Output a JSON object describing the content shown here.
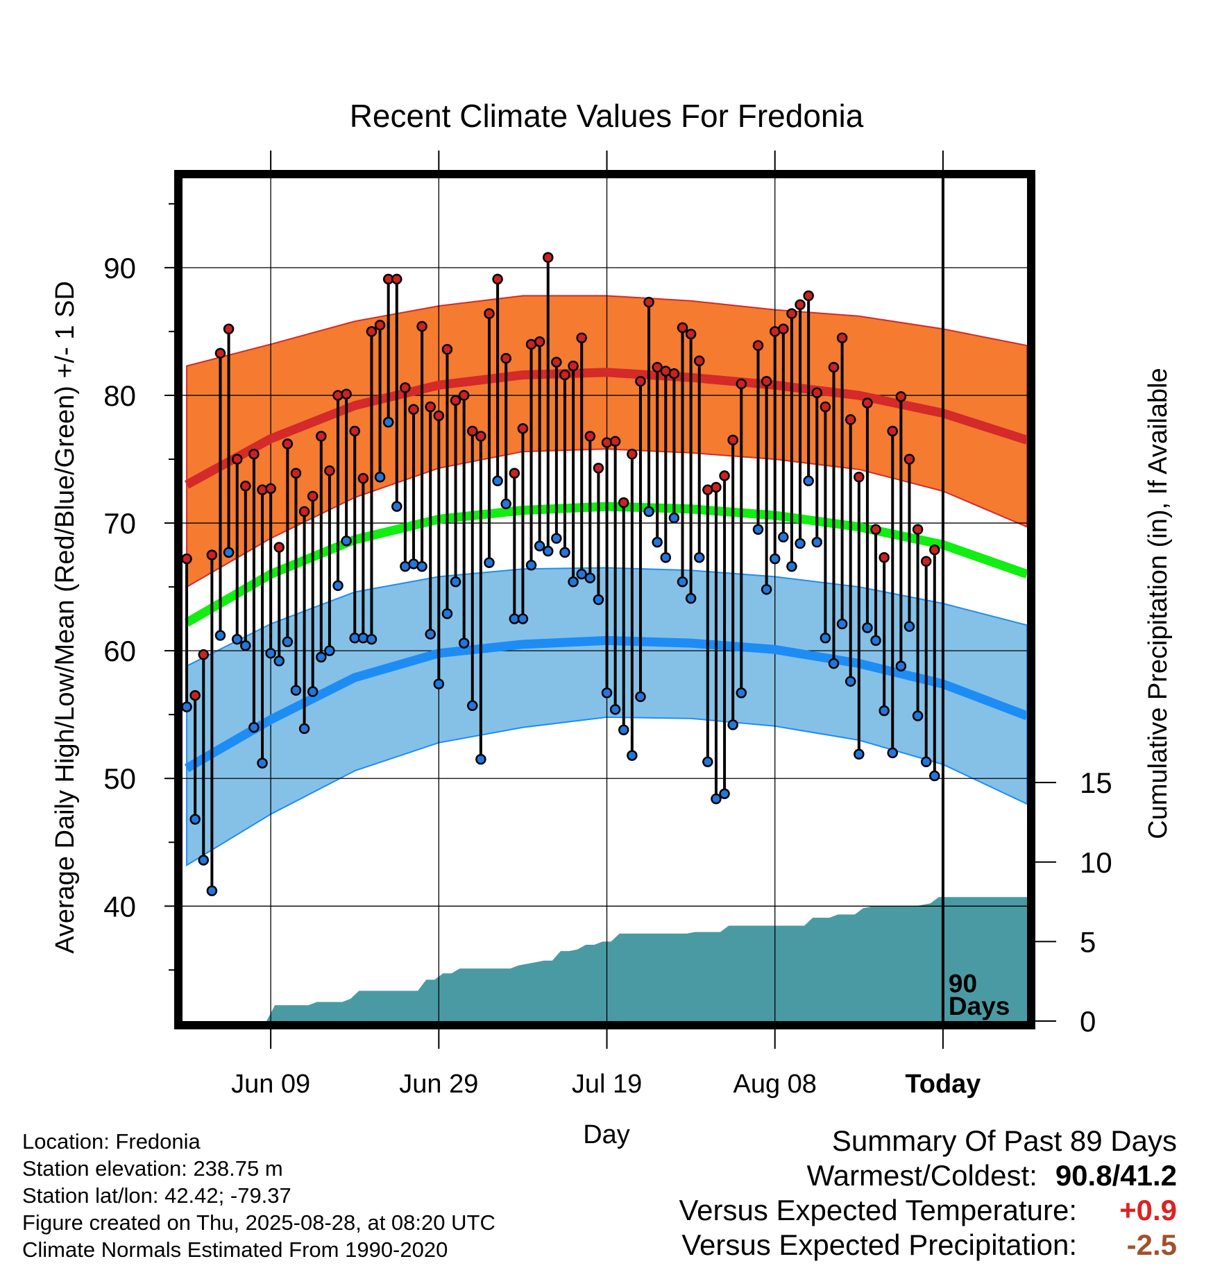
{
  "chart_data": {
    "type": "line",
    "title": "Recent Climate Values For Fredonia",
    "xlabel": "Day",
    "ylabel_left": "Average Daily High/Low/Mean (Red/Blue/Green) +/- 1 SD",
    "ylabel_right": "Cumulative Precipitation (in), If Available",
    "ylim": [
      31,
      97
    ],
    "ylim_right": [
      0,
      53
    ],
    "yticks": [
      40,
      50,
      60,
      70,
      80,
      90
    ],
    "yticks_right": [
      0,
      5,
      10,
      15
    ],
    "x_tick_labels": [
      "Jun 09",
      "Jun 29",
      "Jul 19",
      "Aug 08",
      "Today"
    ],
    "x_tick_days": [
      10,
      30,
      50,
      70,
      90
    ],
    "x_range": [
      -0.5,
      100
    ],
    "today_marker_label": [
      "90",
      "Days"
    ],
    "grid": true,
    "normals": {
      "days": [
        0,
        10,
        20,
        30,
        40,
        50,
        60,
        70,
        80,
        90,
        100
      ],
      "high_mean": [
        73.0,
        76.6,
        79.2,
        80.8,
        81.6,
        81.8,
        81.4,
        80.8,
        80.0,
        78.6,
        76.5
      ],
      "high_upper": [
        82.3,
        84.0,
        85.8,
        87.0,
        87.8,
        87.8,
        87.4,
        86.7,
        86.2,
        85.2,
        83.9
      ],
      "high_lower": [
        65.0,
        68.8,
        72.0,
        74.3,
        75.6,
        75.8,
        75.5,
        75.0,
        74.2,
        72.5,
        69.7
      ],
      "mean": [
        62.2,
        66.0,
        68.7,
        70.3,
        71.0,
        71.3,
        71.1,
        70.6,
        69.7,
        68.3,
        66.0
      ],
      "low_mean": [
        50.8,
        54.6,
        57.9,
        59.8,
        60.5,
        60.8,
        60.6,
        60.1,
        59.0,
        57.4,
        54.9
      ],
      "low_upper": [
        58.8,
        62.1,
        64.6,
        65.8,
        66.4,
        66.5,
        66.3,
        65.8,
        65.0,
        63.7,
        62.0
      ],
      "low_lower": [
        43.2,
        47.2,
        50.6,
        52.8,
        54.0,
        54.8,
        54.7,
        54.1,
        53.0,
        51.1,
        48.0
      ]
    },
    "series": [
      {
        "name": "High",
        "color": "#cc2222",
        "values": [
          67.2,
          56.5,
          59.7,
          67.5,
          83.3,
          85.2,
          75.0,
          72.9,
          75.4,
          72.6,
          72.7,
          68.1,
          76.2,
          73.9,
          70.9,
          72.1,
          76.8,
          74.1,
          80.0,
          80.1,
          77.2,
          73.5,
          85.0,
          85.5,
          89.1,
          89.1,
          80.6,
          78.9,
          85.4,
          79.1,
          78.4,
          83.6,
          79.6,
          80.0,
          77.2,
          76.8,
          86.4,
          89.1,
          82.9,
          73.9,
          77.4,
          84.0,
          84.2,
          90.8,
          82.6,
          81.6,
          82.3,
          84.5,
          76.8,
          74.3,
          76.3,
          76.4,
          71.6,
          75.4,
          81.1,
          87.3,
          82.2,
          81.9,
          81.7,
          85.3,
          84.8,
          82.7,
          72.6,
          72.8,
          73.7,
          76.5,
          80.9,
          null,
          83.9,
          81.1,
          85.0,
          85.2,
          86.4,
          87.1,
          87.8,
          80.2,
          79.1,
          82.2,
          84.5,
          78.1,
          73.6,
          79.4,
          69.5,
          67.3,
          77.2,
          79.9,
          75.0,
          69.5,
          67.0,
          67.9
        ]
      },
      {
        "name": "Low",
        "color": "#2277dd",
        "values": [
          55.6,
          46.8,
          43.6,
          41.2,
          61.2,
          67.7,
          60.9,
          60.4,
          54.0,
          51.2,
          59.8,
          59.2,
          60.7,
          56.9,
          53.9,
          56.8,
          59.5,
          60.0,
          65.1,
          68.6,
          61.0,
          61.0,
          60.9,
          73.6,
          77.9,
          71.3,
          66.6,
          66.8,
          66.6,
          61.3,
          57.4,
          62.9,
          65.4,
          60.6,
          55.7,
          51.5,
          66.9,
          73.3,
          71.5,
          62.5,
          62.5,
          66.7,
          68.2,
          67.8,
          68.8,
          67.7,
          65.4,
          66.0,
          65.7,
          64.0,
          56.7,
          55.4,
          53.8,
          51.8,
          56.4,
          70.9,
          68.5,
          67.3,
          70.4,
          65.4,
          64.1,
          67.3,
          51.3,
          48.4,
          48.8,
          54.2,
          56.7,
          null,
          69.5,
          64.8,
          67.2,
          68.9,
          66.6,
          68.4,
          73.3,
          68.5,
          61.0,
          59.0,
          62.1,
          57.6,
          51.9,
          61.8,
          60.8,
          55.3,
          52.0,
          58.8,
          61.9,
          54.9,
          51.3,
          50.2
        ]
      }
    ],
    "precip_cumulative": {
      "days": [
        9.5,
        10.5,
        14.5,
        15.5,
        18.5,
        19.5,
        20.5,
        27.5,
        28.5,
        29.5,
        30.5,
        31.5,
        32.5,
        33.5,
        34.5,
        38.5,
        39.5,
        41.5,
        42.5,
        43.5,
        44.5,
        45.5,
        46.5,
        47.5,
        48.5,
        49.5,
        50.5,
        51.5,
        55.5,
        56.5,
        59.5,
        60.5,
        61.5,
        63.5,
        64.5,
        73.5,
        74.5,
        76.5,
        77.5,
        78.5,
        79.5,
        80.5,
        81.5,
        85.5,
        86.5,
        88.5,
        89.5,
        100
      ],
      "values": [
        0,
        1.0,
        1.0,
        1.2,
        1.2,
        1.4,
        1.9,
        1.9,
        2.6,
        2.6,
        3.0,
        3.0,
        3.3,
        3.3,
        3.3,
        3.3,
        3.5,
        3.7,
        3.8,
        3.8,
        4.4,
        4.4,
        4.5,
        4.8,
        4.8,
        5.0,
        5.0,
        5.5,
        5.5,
        5.5,
        5.5,
        5.6,
        5.6,
        5.6,
        6.0,
        6.0,
        6.5,
        6.5,
        6.7,
        6.7,
        6.7,
        7.1,
        7.2,
        7.2,
        7.2,
        7.4,
        7.8,
        7.8
      ],
      "color": "#4a9aa3"
    },
    "colors": {
      "high_band": "#f47b30",
      "high_line": "#d42a2a",
      "low_band": "#85c1e6",
      "low_line": "#1e8cf5",
      "mean_line": "#11ee11",
      "precip": "#4a9aa3"
    }
  },
  "metadata": {
    "location": "Location: Fredonia",
    "elevation": "Station elevation: 238.75 m",
    "latlon": "Station lat/lon: 42.42; -79.37",
    "created": "Figure created on Thu, 2025-08-28, at 08:20 UTC",
    "normals": "Climate Normals Estimated From 1990-2020"
  },
  "summary": {
    "title": "Summary Of Past 89 Days",
    "warm_cold_label": "Warmest/Coldest:",
    "warm_cold_value": "90.8/41.2",
    "temp_label": "Versus Expected Temperature:",
    "temp_value": "+0.9",
    "temp_color": "#dd2222",
    "precip_label": "Versus Expected Precipitation:",
    "precip_value": "-2.5",
    "precip_color": "#a0522d"
  }
}
